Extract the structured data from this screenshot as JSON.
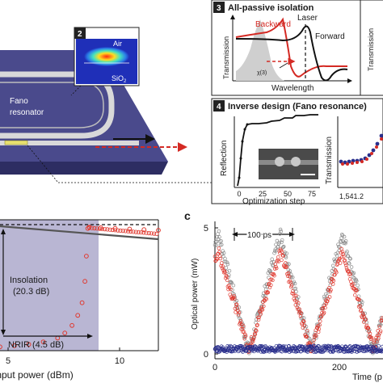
{
  "panel_device": {
    "inset_number": "2",
    "air_label": "Air",
    "sio2_label": "SiO",
    "sio2_sub": "2",
    "fano_line1": "Fano",
    "fano_line2": "resonator"
  },
  "panel_3": {
    "number": "3",
    "title": "All-passive isolation",
    "ylabel": "Transmission",
    "xlabel": "Wavelength",
    "label_backward": "Backward",
    "label_laser": "Laser",
    "label_forward": "Forward",
    "label_chi3": "χ(3)",
    "ylabel_right": "Transmission",
    "colors": {
      "backward": "#d42a24",
      "forward": "#111111",
      "shade": "#cfcfcf"
    }
  },
  "panel_4": {
    "number": "4",
    "title": "Inverse design (Fano resonance)",
    "left": {
      "ylabel": "Reflection",
      "xlabel": "Optimization step",
      "xticks": [
        "0",
        "25",
        "50",
        "75"
      ]
    },
    "right": {
      "ylabel": "Transmission",
      "xtick": "1,541.2"
    }
  },
  "panel_b": {
    "xticks": [
      "5",
      "10"
    ],
    "xlabel": "Input power (dBm)",
    "isolation_line1": "Insolation",
    "isolation_line2": "(20.3 dB)",
    "nrir_label": "NRIR (4.5 dB)",
    "colors": {
      "shade": "#b9b6d3",
      "forward": "#e0392f",
      "backward": "#555555"
    },
    "chart_data": {
      "type": "scatter",
      "series": [
        {
          "x": [
            3,
            4,
            5,
            6,
            7,
            7.5,
            8,
            8.4,
            8.7,
            8.9,
            9.0,
            9.1
          ],
          "y": [
            0.03,
            0.04,
            0.05,
            0.07,
            0.1,
            0.14,
            0.2,
            0.28,
            0.38,
            0.55,
            0.75,
            0.97
          ]
        },
        {
          "x": [
            9.2,
            10,
            11,
            12,
            13,
            14
          ],
          "y": [
            0.98,
            0.975,
            0.97,
            0.965,
            0.96,
            0.955
          ]
        },
        {
          "x": [
            3,
            5,
            7,
            9,
            11,
            13,
            14
          ],
          "y": [
            0.99,
            0.98,
            0.97,
            0.96,
            0.955,
            0.95,
            0.948
          ]
        }
      ],
      "xlim": [
        3,
        14
      ]
    }
  },
  "panel_c": {
    "letter": "c",
    "ylabel": "Optical power (mW)",
    "xlabel": "Time (p",
    "yticks": [
      "0",
      "5"
    ],
    "xticks": [
      "0",
      "200"
    ],
    "period_label": "100 ps",
    "colors": {
      "grey": "#8a8a8a",
      "red": "#e0392f",
      "blue": "#2a2f8c"
    },
    "chart_data": {
      "type": "scatter",
      "period_ps": 100,
      "xlim": [
        0,
        250
      ],
      "ylim": [
        0,
        5
      ],
      "series": [
        {
          "peak_mw": 4.8,
          "trough_mw": 0.1
        },
        {
          "peak_mw": 4.2,
          "trough_mw": 0.2
        },
        {
          "level_mw": 0.2
        }
      ]
    }
  }
}
